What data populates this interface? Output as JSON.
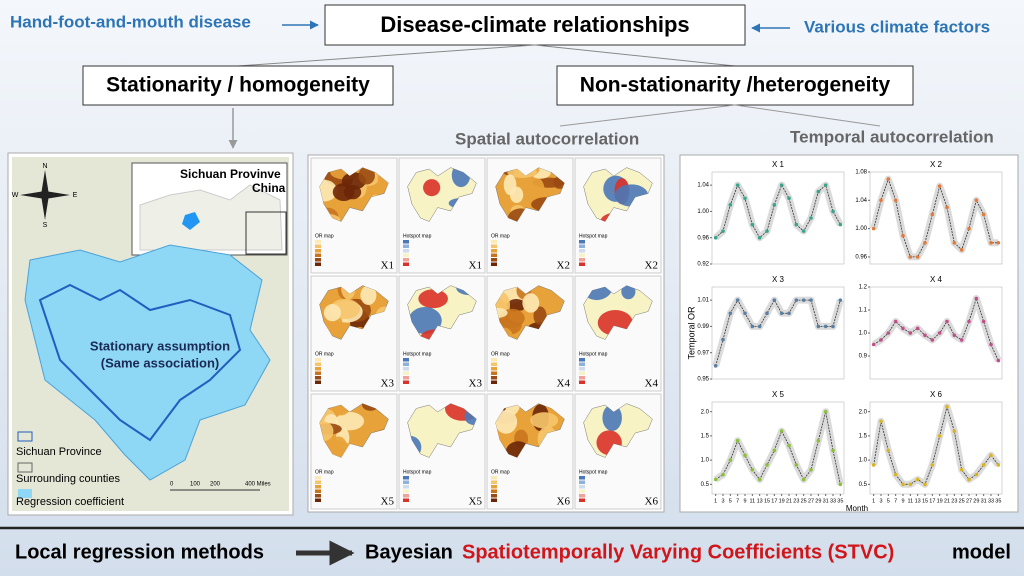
{
  "header": {
    "left_label": "Hand-foot-and-mouth disease",
    "title": "Disease-climate relationships",
    "right_label": "Various climate factors"
  },
  "branches": {
    "left": "Stationarity / homogeneity",
    "right": "Non-stationarity /heterogeneity",
    "spatial": "Spatial autocorrelation",
    "temporal": "Temporal autocorrelation"
  },
  "left_map": {
    "compass": [
      "N",
      "E",
      "S",
      "W"
    ],
    "inset_title": [
      "Sichuan Provinve",
      "China"
    ],
    "center_text": [
      "Stationary assumption",
      "(Same association)"
    ],
    "legend": [
      "Sichuan Province",
      "Surrounding counties",
      "Regression coefficient"
    ],
    "scale": [
      "0",
      "100",
      "200",
      "400 Miles"
    ]
  },
  "map_panels": [
    {
      "variable": "X1",
      "or_map": "OR map",
      "hotspot_map": "Hotspot map"
    },
    {
      "variable": "X2",
      "or_map": "OR map",
      "hotspot_map": "Hotspot map"
    },
    {
      "variable": "X3",
      "or_map": "OR map",
      "hotspot_map": "Hotspot map"
    },
    {
      "variable": "X4",
      "or_map": "OR map",
      "hotspot_map": "Hotspot map"
    },
    {
      "variable": "X5",
      "or_map": "OR map",
      "hotspot_map": "Hotspot map"
    },
    {
      "variable": "X6",
      "or_map": "OR map",
      "hotspot_map": "Hotspot map"
    }
  ],
  "temporal": {
    "y_label": "Temporal OR",
    "x_label": "Month",
    "x": [
      1,
      3,
      5,
      7,
      9,
      11,
      13,
      15,
      17,
      19,
      21,
      23,
      25,
      27,
      29,
      31,
      33,
      35
    ],
    "xlim": [
      0,
      36
    ],
    "xticks": [
      1,
      3,
      5,
      7,
      9,
      11,
      13,
      15,
      17,
      19,
      21,
      23,
      25,
      27,
      29,
      31,
      33,
      35
    ],
    "panels": [
      {
        "title": "X 1",
        "color": "#3aa58a",
        "ylim": [
          0.92,
          1.06
        ],
        "yticks": [
          {
            "value": 0.92,
            "label": "0.92"
          },
          {
            "value": 0.96,
            "label": "0.96"
          },
          {
            "value": 1.0,
            "label": "1.00"
          },
          {
            "value": 1.04,
            "label": "1.04"
          }
        ],
        "values": [
          0.96,
          0.97,
          1.01,
          1.04,
          1.02,
          0.98,
          0.96,
          0.97,
          1.01,
          1.04,
          1.02,
          0.98,
          0.97,
          0.99,
          1.03,
          1.04,
          1.0,
          0.98
        ]
      },
      {
        "title": "X 2",
        "color": "#e07b39",
        "ylim": [
          0.95,
          1.08
        ],
        "yticks": [
          0.96,
          {
            "value": 1.0,
            "label": "1.00"
          },
          1.04,
          1.08
        ],
        "values": [
          1.0,
          1.04,
          1.07,
          1.04,
          0.99,
          0.96,
          0.96,
          0.98,
          1.02,
          1.06,
          1.03,
          0.98,
          0.97,
          1.0,
          1.04,
          1.02,
          0.98,
          0.98
        ]
      },
      {
        "title": "X 3",
        "color": "#5a7fa0",
        "ylim": [
          0.95,
          1.02
        ],
        "yticks": [
          0.95,
          0.97,
          0.99,
          1.01
        ],
        "values": [
          0.96,
          0.98,
          1.0,
          1.01,
          1.0,
          0.99,
          0.99,
          1.0,
          1.01,
          1.0,
          1.0,
          1.01,
          1.01,
          1.01,
          0.99,
          0.99,
          0.99,
          1.01
        ]
      },
      {
        "title": "X 4",
        "color": "#c0508a",
        "ylim": [
          0.8,
          1.2
        ],
        "yticks": [
          0.9,
          {
            "value": 1.0,
            "label": "1.0"
          },
          1.1,
          1.2
        ],
        "values": [
          0.95,
          0.97,
          1.0,
          1.05,
          1.02,
          1.0,
          1.02,
          0.99,
          0.97,
          1.0,
          1.05,
          0.99,
          0.97,
          1.05,
          1.15,
          1.05,
          0.95,
          0.88
        ]
      },
      {
        "title": "X 5",
        "color": "#8cbf3a",
        "ylim": [
          0.3,
          2.2
        ],
        "yticks": [
          0.5,
          {
            "value": 1.0,
            "label": "1.0"
          },
          1.5,
          {
            "value": 2.0,
            "label": "2.0"
          }
        ],
        "values": [
          0.6,
          0.7,
          1.0,
          1.4,
          1.1,
          0.8,
          0.6,
          0.9,
          1.2,
          1.6,
          1.3,
          0.9,
          0.6,
          0.8,
          1.4,
          2.0,
          1.2,
          0.5
        ]
      },
      {
        "title": "X 6",
        "color": "#d9b520",
        "ylim": [
          0.3,
          2.2
        ],
        "yticks": [
          0.5,
          {
            "value": 1.0,
            "label": "1.0"
          },
          1.5,
          {
            "value": 2.0,
            "label": "2.0"
          }
        ],
        "values": [
          0.9,
          1.8,
          1.2,
          0.7,
          0.5,
          0.5,
          0.6,
          0.5,
          0.9,
          1.5,
          2.1,
          1.6,
          0.8,
          0.6,
          0.7,
          0.9,
          1.1,
          0.9
        ]
      }
    ]
  },
  "footer": {
    "left": "Local regression methods",
    "middle": "Bayesian",
    "highlight": "Spatiotemporally Varying Coefficients (STVC)",
    "right": "model"
  }
}
